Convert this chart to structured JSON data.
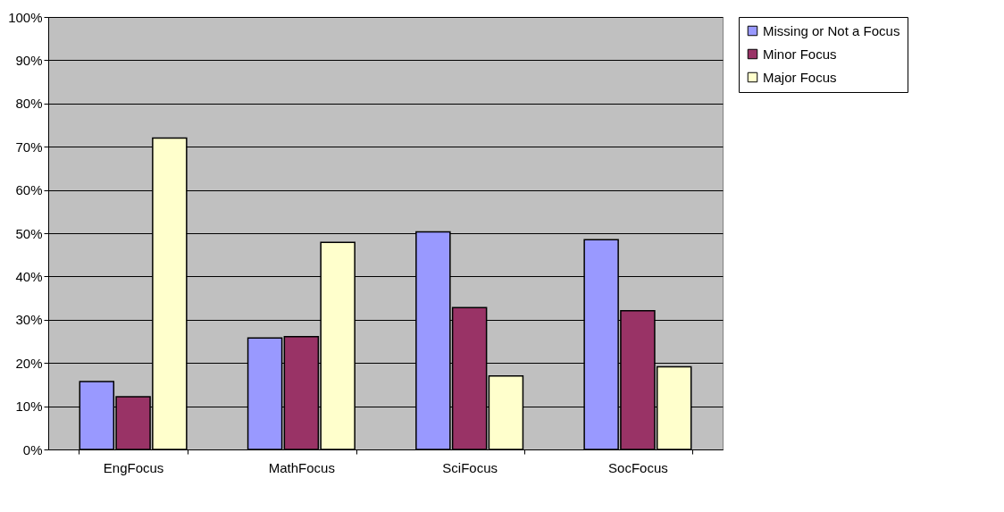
{
  "chart_data": {
    "type": "bar",
    "categories": [
      "EngFocus",
      "MathFocus",
      "SciFocus",
      "SocFocus"
    ],
    "series": [
      {
        "name": "Missing or Not a Focus",
        "color": "#9999ff",
        "values": [
          15.7,
          25.8,
          50.3,
          48.5
        ]
      },
      {
        "name": "Minor Focus",
        "color": "#993366",
        "values": [
          12.2,
          26.1,
          32.8,
          32.1
        ]
      },
      {
        "name": "Major Focus",
        "color": "#ffffcc",
        "values": [
          72,
          47.9,
          17,
          19.1
        ]
      }
    ],
    "ylim": [
      0,
      100
    ],
    "yticks": [
      {
        "value": 0,
        "label": "0%"
      },
      {
        "value": 10,
        "label": "10%"
      },
      {
        "value": 20,
        "label": "20%"
      },
      {
        "value": 30,
        "label": "30%"
      },
      {
        "value": 40,
        "label": "40%"
      },
      {
        "value": 50,
        "label": "50%"
      },
      {
        "value": 60,
        "label": "60%"
      },
      {
        "value": 70,
        "label": "70%"
      },
      {
        "value": 80,
        "label": "80%"
      },
      {
        "value": 90,
        "label": "90%"
      },
      {
        "value": 100,
        "label": "100%"
      }
    ],
    "grid": "y",
    "legend": "right"
  }
}
